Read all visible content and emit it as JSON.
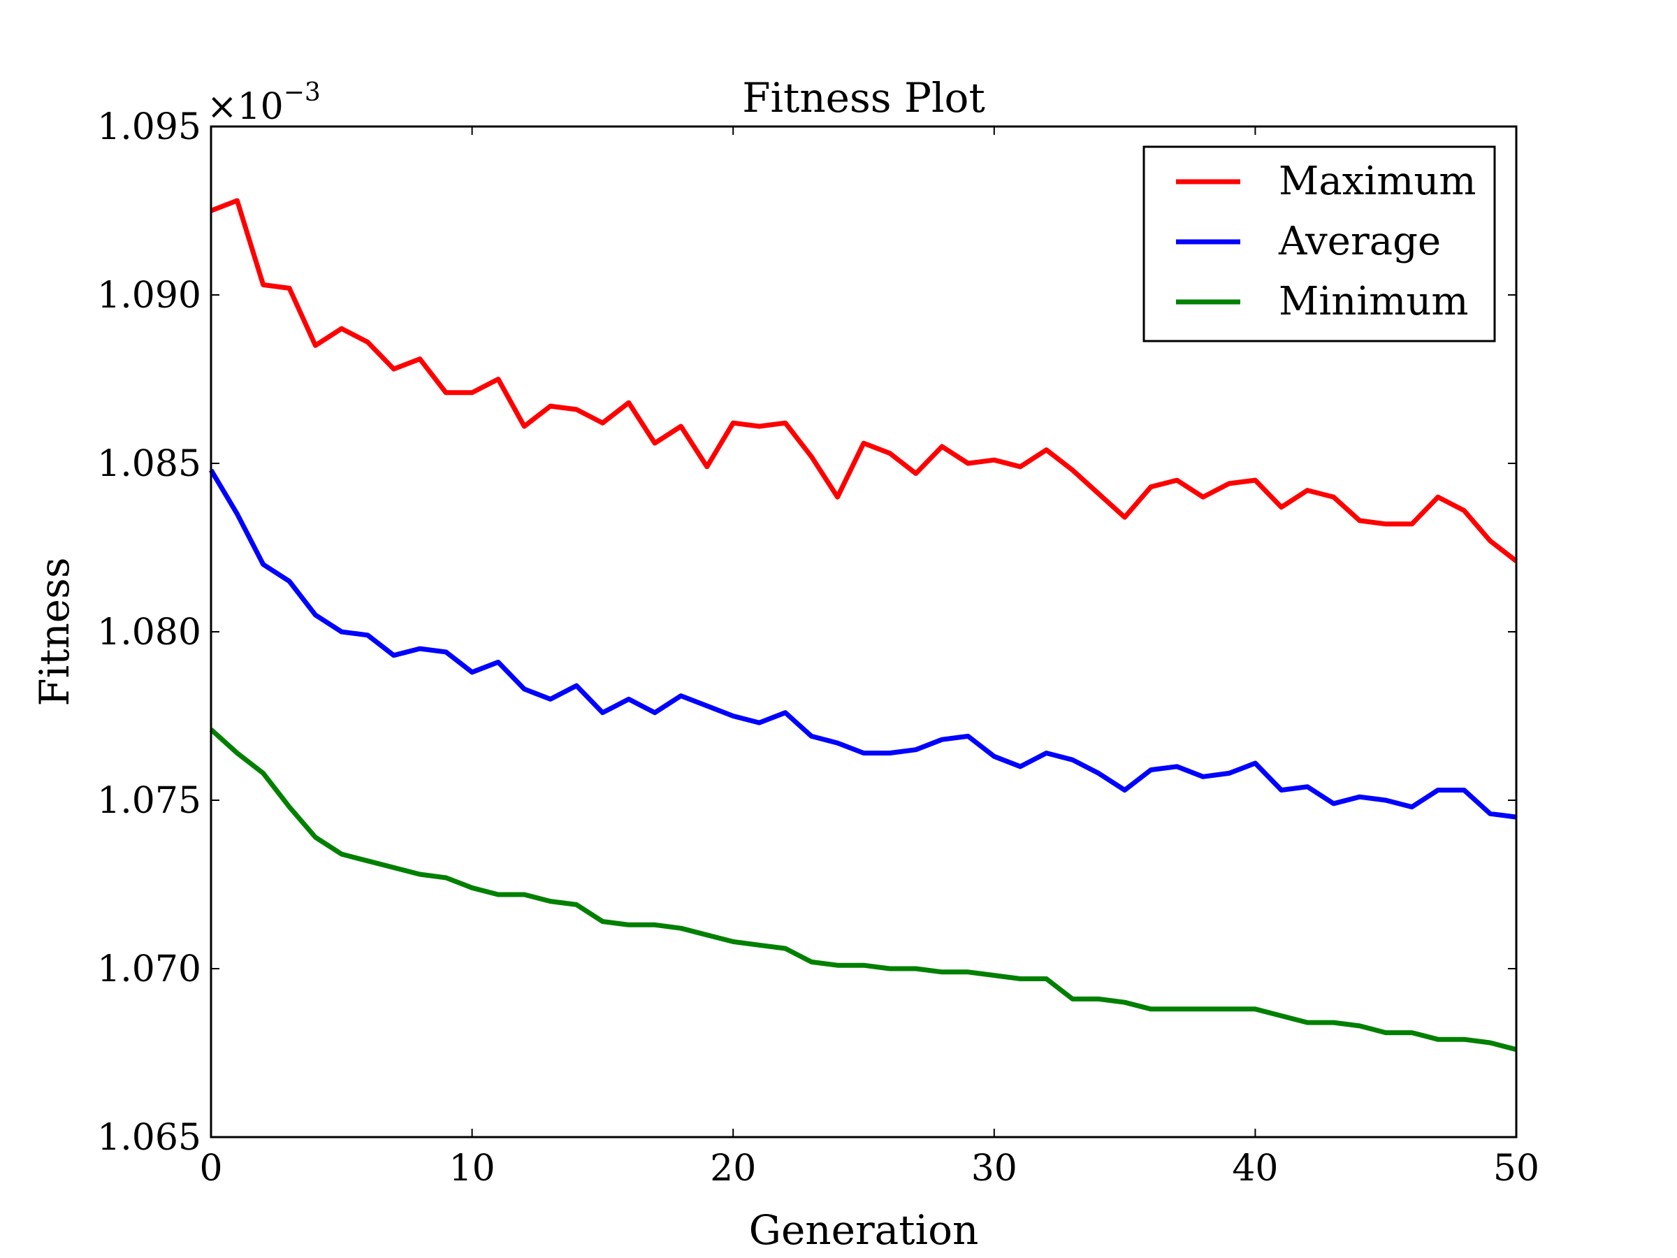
{
  "chart_data": {
    "type": "line",
    "title": "Fitness Plot",
    "xlabel": "Generation",
    "ylabel": "Fitness",
    "offset_label": "×10",
    "offset_exponent": "−3",
    "xlim": [
      0,
      50
    ],
    "ylim": [
      1.065,
      1.095
    ],
    "xticks": [
      0,
      10,
      20,
      30,
      40,
      50
    ],
    "yticks": [
      1.065,
      1.07,
      1.075,
      1.08,
      1.085,
      1.09,
      1.095
    ],
    "xtick_labels": [
      "0",
      "10",
      "20",
      "30",
      "40",
      "50"
    ],
    "ytick_labels": [
      "1.065",
      "1.070",
      "1.075",
      "1.080",
      "1.085",
      "1.090",
      "1.095"
    ],
    "grid": false,
    "legend_position": "top-right",
    "x": [
      0,
      1,
      2,
      3,
      4,
      5,
      6,
      7,
      8,
      9,
      10,
      11,
      12,
      13,
      14,
      15,
      16,
      17,
      18,
      19,
      20,
      21,
      22,
      23,
      24,
      25,
      26,
      27,
      28,
      29,
      30,
      31,
      32,
      33,
      34,
      35,
      36,
      37,
      38,
      39,
      40,
      41,
      42,
      43,
      44,
      45,
      46,
      47,
      48,
      49,
      50
    ],
    "series": [
      {
        "name": "Maximum",
        "color": "#ff0000",
        "values": [
          1.0925,
          1.0928,
          1.0903,
          1.0902,
          1.0885,
          1.089,
          1.0886,
          1.0878,
          1.0881,
          1.0871,
          1.0871,
          1.0875,
          1.0861,
          1.0867,
          1.0866,
          1.0862,
          1.0868,
          1.0856,
          1.0861,
          1.0849,
          1.0862,
          1.0861,
          1.0862,
          1.0852,
          1.084,
          1.0856,
          1.0853,
          1.0847,
          1.0855,
          1.085,
          1.0851,
          1.0849,
          1.0854,
          1.0848,
          1.0841,
          1.0834,
          1.0843,
          1.0845,
          1.084,
          1.0844,
          1.0845,
          1.0837,
          1.0842,
          1.084,
          1.0833,
          1.0832,
          1.0832,
          1.084,
          1.0836,
          1.0827,
          1.0821
        ]
      },
      {
        "name": "Average",
        "color": "#0000ff",
        "values": [
          1.0848,
          1.0835,
          1.082,
          1.0815,
          1.0805,
          1.08,
          1.0799,
          1.0793,
          1.0795,
          1.0794,
          1.0788,
          1.0791,
          1.0783,
          1.078,
          1.0784,
          1.0776,
          1.078,
          1.0776,
          1.0781,
          1.0778,
          1.0775,
          1.0773,
          1.0776,
          1.0769,
          1.0767,
          1.0764,
          1.0764,
          1.0765,
          1.0768,
          1.0769,
          1.0763,
          1.076,
          1.0764,
          1.0762,
          1.0758,
          1.0753,
          1.0759,
          1.076,
          1.0757,
          1.0758,
          1.0761,
          1.0753,
          1.0754,
          1.0749,
          1.0751,
          1.075,
          1.0748,
          1.0753,
          1.0753,
          1.0746,
          1.0745
        ]
      },
      {
        "name": "Minimum",
        "color": "#008000",
        "values": [
          1.0771,
          1.0764,
          1.0758,
          1.0748,
          1.0739,
          1.0734,
          1.0732,
          1.073,
          1.0728,
          1.0727,
          1.0724,
          1.0722,
          1.0722,
          1.072,
          1.0719,
          1.0714,
          1.0713,
          1.0713,
          1.0712,
          1.071,
          1.0708,
          1.0707,
          1.0706,
          1.0702,
          1.0701,
          1.0701,
          1.07,
          1.07,
          1.0699,
          1.0699,
          1.0698,
          1.0697,
          1.0697,
          1.0691,
          1.0691,
          1.069,
          1.0688,
          1.0688,
          1.0688,
          1.0688,
          1.0688,
          1.0686,
          1.0684,
          1.0684,
          1.0683,
          1.0681,
          1.0681,
          1.0679,
          1.0679,
          1.0678,
          1.0676
        ]
      }
    ]
  }
}
